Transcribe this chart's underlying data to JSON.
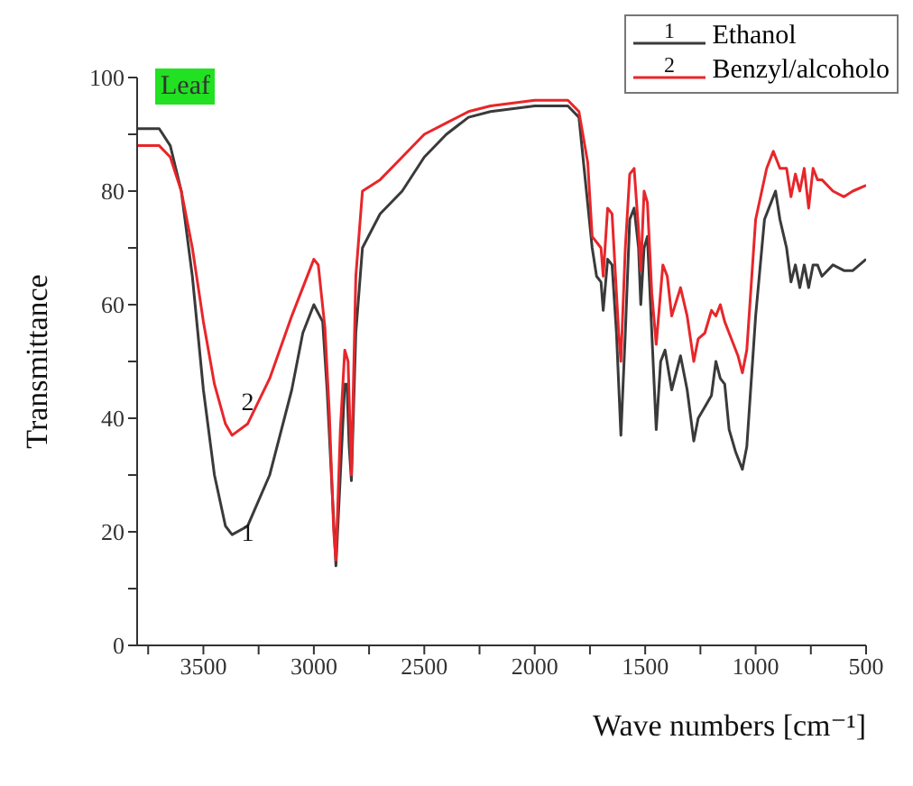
{
  "chart_data": {
    "type": "line",
    "xlabel": "Wave numbers [cm⁻¹]",
    "ylabel": "Transmittance",
    "annotations": [
      "Leaf",
      {
        "text": "1",
        "x": 3300,
        "y": 20
      },
      {
        "text": "2",
        "x": 3300,
        "y": 43
      }
    ],
    "xlim": [
      3800,
      500
    ],
    "xticks": [
      {
        "value": 3750,
        "label": null
      },
      3500,
      {
        "value": 3250,
        "label": null
      },
      3000,
      {
        "value": 2750,
        "label": null
      },
      2500,
      {
        "value": 2250,
        "label": null
      },
      2000,
      {
        "value": 1750,
        "label": null
      },
      1500,
      {
        "value": 1250,
        "label": null
      },
      1000,
      {
        "value": 750,
        "label": null
      },
      500
    ],
    "ylim": [
      0,
      100
    ],
    "yticks": [
      0,
      {
        "value": 10,
        "label": null
      },
      20,
      {
        "value": 30,
        "label": null
      },
      40,
      {
        "value": 50,
        "label": null
      },
      60,
      {
        "value": 70,
        "label": null
      },
      80,
      {
        "value": 90,
        "label": null
      },
      100
    ],
    "grid": false,
    "legend": "top right",
    "marker": "none",
    "line_style": "solid",
    "series": [
      {
        "name": "Ethanol",
        "color": "#3a3a3a",
        "x": [
          3800,
          3700,
          3650,
          3600,
          3550,
          3500,
          3450,
          3400,
          3370,
          3300,
          3200,
          3100,
          3050,
          3000,
          2960,
          2940,
          2900,
          2880,
          2860,
          2850,
          2840,
          2830,
          2810,
          2780,
          2700,
          2600,
          2500,
          2400,
          2300,
          2200,
          2000,
          1850,
          1800,
          1740,
          1720,
          1700,
          1690,
          1670,
          1650,
          1630,
          1610,
          1590,
          1570,
          1550,
          1530,
          1520,
          1505,
          1490,
          1470,
          1450,
          1430,
          1410,
          1380,
          1340,
          1310,
          1280,
          1260,
          1230,
          1200,
          1180,
          1160,
          1140,
          1120,
          1090,
          1060,
          1040,
          1000,
          960,
          930,
          910,
          890,
          860,
          840,
          820,
          800,
          780,
          760,
          740,
          720,
          700,
          650,
          600,
          560,
          500
        ],
        "values": [
          91,
          91,
          88,
          80,
          65,
          45,
          30,
          21,
          19.5,
          21,
          30,
          45,
          55,
          60,
          57,
          45,
          14,
          30,
          46,
          46,
          35,
          29,
          55,
          70,
          76,
          80,
          86,
          90,
          93,
          94,
          95,
          95,
          93,
          70,
          65,
          64,
          59,
          68,
          67,
          55,
          37,
          55,
          75,
          77,
          70,
          60,
          70,
          72,
          55,
          38,
          50,
          52,
          45,
          51,
          45,
          36,
          40,
          42,
          44,
          50,
          47,
          46,
          38,
          34,
          31,
          35,
          58,
          75,
          78,
          80,
          75,
          70,
          64,
          67,
          63,
          67,
          63,
          67,
          67,
          65,
          67,
          66,
          66,
          68
        ]
      },
      {
        "name": "Benzyl/alcoholo",
        "color": "#e8262a",
        "x": [
          3800,
          3700,
          3650,
          3600,
          3550,
          3500,
          3450,
          3400,
          3370,
          3300,
          3200,
          3100,
          3000,
          2980,
          2950,
          2930,
          2910,
          2900,
          2880,
          2860,
          2845,
          2830,
          2810,
          2780,
          2700,
          2600,
          2500,
          2400,
          2300,
          2200,
          2000,
          1850,
          1800,
          1760,
          1740,
          1700,
          1690,
          1670,
          1650,
          1620,
          1610,
          1590,
          1570,
          1550,
          1530,
          1520,
          1505,
          1490,
          1470,
          1450,
          1420,
          1400,
          1380,
          1340,
          1310,
          1280,
          1260,
          1230,
          1200,
          1180,
          1160,
          1140,
          1120,
          1080,
          1060,
          1040,
          1000,
          950,
          920,
          890,
          860,
          840,
          820,
          800,
          780,
          760,
          740,
          720,
          700,
          650,
          600,
          560,
          500
        ],
        "values": [
          88,
          88,
          86,
          80,
          70,
          57,
          46,
          39,
          37,
          39,
          47,
          58,
          68,
          67,
          56,
          41,
          20,
          15,
          38,
          52,
          50,
          30,
          65,
          80,
          82,
          86,
          90,
          92,
          94,
          95,
          96,
          96,
          94,
          85,
          72,
          70,
          65,
          77,
          76,
          55,
          50,
          70,
          83,
          84,
          73,
          66,
          80,
          78,
          62,
          53,
          67,
          65,
          58,
          63,
          58,
          50,
          54,
          55,
          59,
          58,
          60,
          57,
          55,
          51,
          48,
          52,
          75,
          84,
          87,
          84,
          84,
          79,
          83,
          80,
          84,
          77,
          84,
          82,
          82,
          80,
          79,
          80,
          81
        ]
      }
    ]
  }
}
